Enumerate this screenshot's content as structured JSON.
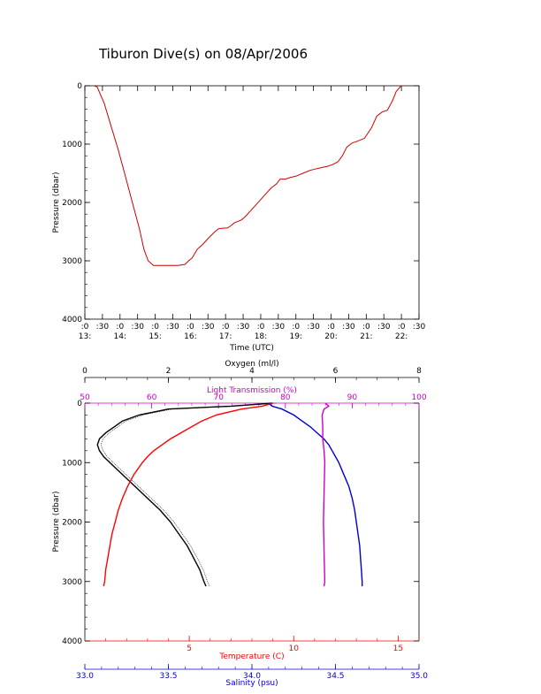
{
  "chart_data": [
    {
      "type": "line",
      "title": "Tiburon Dive(s) on 08/Apr/2006",
      "xlabel": "Time (UTC)",
      "ylabel": "Pressure (dbar)",
      "ylim": [
        4000,
        0
      ],
      "yticks": [
        "0",
        "1000",
        "2000",
        "3000",
        "4000"
      ],
      "xticks_top": [
        ":0",
        ":30",
        ":0",
        ":30",
        ":0",
        ":30",
        ":0",
        ":30",
        ":0",
        ":30",
        ":0",
        ":30",
        ":0",
        ":30",
        ":0",
        ":30",
        ":0",
        ":30",
        ":0",
        ":30"
      ],
      "xticks_bottom": [
        "13:",
        "14:",
        "15:",
        "16:",
        "17:",
        "18:",
        "19:",
        "20:",
        "21:",
        "22:"
      ],
      "series": [
        {
          "color": "#cc0000",
          "x_hours": [
            13.28,
            13.35,
            13.55,
            13.75,
            13.95,
            14.15,
            14.35,
            14.55,
            14.68,
            14.8,
            14.95,
            15.1,
            15.25,
            15.45,
            15.65,
            15.85,
            15.95,
            16.05,
            16.15,
            16.2,
            16.35,
            16.5,
            16.7,
            16.8,
            16.95,
            17.05,
            17.15,
            17.25,
            17.45,
            17.55,
            17.7,
            17.85,
            18.0,
            18.15,
            18.3,
            18.45,
            18.55,
            18.7,
            18.85,
            19.0,
            19.2,
            19.4,
            19.6,
            19.75,
            19.9,
            20.05,
            20.2,
            20.32,
            20.45,
            20.6,
            20.75,
            20.95,
            21.15,
            21.3,
            21.45,
            21.6,
            21.75,
            21.85,
            21.95,
            22.0
          ],
          "y_dbar": [
            5,
            20,
            300,
            700,
            1100,
            1550,
            2000,
            2450,
            2800,
            3000,
            3080,
            3080,
            3080,
            3080,
            3080,
            3060,
            3000,
            2950,
            2850,
            2800,
            2720,
            2620,
            2500,
            2450,
            2440,
            2440,
            2400,
            2350,
            2300,
            2250,
            2150,
            2050,
            1950,
            1850,
            1750,
            1680,
            1600,
            1600,
            1570,
            1550,
            1500,
            1450,
            1420,
            1400,
            1380,
            1350,
            1300,
            1200,
            1050,
            980,
            950,
            900,
            720,
            520,
            450,
            420,
            250,
            100,
            30,
            0
          ]
        }
      ]
    },
    {
      "type": "scatter",
      "ylabel": "Pressure (dbar)",
      "ylim": [
        4000,
        0
      ],
      "yticks": [
        "0",
        "1000",
        "2000",
        "3000",
        "4000"
      ],
      "axes": {
        "oxygen": {
          "label": "Oxygen (ml/l)",
          "range": [
            0,
            8
          ],
          "ticks": [
            "0",
            "2",
            "4",
            "6",
            "8"
          ]
        },
        "transmission": {
          "label": "Light Transmission (%)",
          "range": [
            50,
            100
          ],
          "ticks": [
            "50",
            "60",
            "70",
            "80",
            "90",
            "100"
          ]
        },
        "temperature": {
          "label": "Temperature (C)",
          "range": [
            0,
            16
          ],
          "ticks": [
            "5",
            "10",
            "15"
          ]
        },
        "salinity": {
          "label": "Salinity (psu)",
          "range": [
            33.0,
            35.0
          ],
          "ticks": [
            "33.0",
            "33.5",
            "34.0",
            "34.5",
            "35.0"
          ]
        }
      },
      "series": [
        {
          "name": "Oxygen",
          "color": "#000000",
          "y_dbar": [
            0,
            50,
            100,
            200,
            300,
            400,
            500,
            600,
            700,
            800,
            900,
            1000,
            1200,
            1400,
            1600,
            1800,
            2000,
            2200,
            2400,
            2600,
            2800,
            3000,
            3080
          ],
          "values": [
            4.5,
            3.5,
            2.0,
            1.3,
            0.9,
            0.7,
            0.5,
            0.35,
            0.3,
            0.35,
            0.45,
            0.6,
            0.9,
            1.2,
            1.5,
            1.8,
            2.05,
            2.25,
            2.45,
            2.6,
            2.75,
            2.85,
            2.9
          ]
        },
        {
          "name": "Temperature",
          "color": "#ff0000",
          "y_dbar": [
            0,
            50,
            100,
            200,
            300,
            400,
            500,
            600,
            700,
            800,
            900,
            1000,
            1200,
            1400,
            1600,
            1800,
            2000,
            2200,
            2400,
            2600,
            2800,
            3000,
            3080
          ],
          "values": [
            9.0,
            8.5,
            7.5,
            6.3,
            5.6,
            5.1,
            4.6,
            4.1,
            3.7,
            3.3,
            3.0,
            2.75,
            2.35,
            2.05,
            1.8,
            1.6,
            1.45,
            1.3,
            1.2,
            1.1,
            1.0,
            0.95,
            0.9
          ]
        },
        {
          "name": "Salinity",
          "color": "#0000cc",
          "y_dbar": [
            0,
            50,
            100,
            200,
            300,
            400,
            500,
            600,
            700,
            800,
            900,
            1000,
            1200,
            1400,
            1600,
            1800,
            2000,
            2200,
            2400,
            2600,
            2800,
            3000,
            3080
          ],
          "values": [
            34.1,
            34.12,
            34.18,
            34.25,
            34.3,
            34.35,
            34.39,
            34.43,
            34.46,
            34.48,
            34.5,
            34.52,
            34.55,
            34.58,
            34.6,
            34.615,
            34.625,
            34.635,
            34.645,
            34.65,
            34.655,
            34.66,
            34.66
          ]
        },
        {
          "name": "Light Transmission",
          "color": "#cc00cc",
          "y_dbar": [
            0,
            50,
            100,
            200,
            400,
            600,
            800,
            1000,
            1500,
            2000,
            2500,
            3000,
            3080
          ],
          "values": [
            86.0,
            86.5,
            85.8,
            85.5,
            85.6,
            85.6,
            85.8,
            85.9,
            85.8,
            85.7,
            85.8,
            85.9,
            85.8
          ]
        }
      ]
    }
  ]
}
